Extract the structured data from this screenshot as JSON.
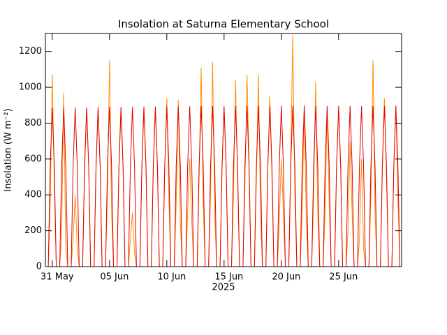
{
  "chart_data": {
    "type": "line",
    "title": "Insolation at Saturna Elementary School",
    "ylabel": "Insolation (W m⁻²)",
    "xlabel": "2025",
    "x": [
      -0.35,
      -0.18,
      0,
      0.18,
      0.35,
      0.65,
      0.82,
      1,
      1.18,
      1.35,
      1.65,
      1.82,
      2,
      2.18,
      2.35,
      2.65,
      2.82,
      3,
      3.18,
      3.35,
      3.65,
      3.82,
      4,
      4.18,
      4.35,
      4.65,
      4.82,
      5,
      5.18,
      5.35,
      5.65,
      5.82,
      6,
      6.18,
      6.35,
      6.65,
      6.82,
      7,
      7.18,
      7.35,
      7.65,
      7.82,
      8,
      8.18,
      8.35,
      8.65,
      8.82,
      9,
      9.18,
      9.35,
      9.65,
      9.82,
      10,
      10.18,
      10.35,
      10.65,
      10.82,
      11,
      11.18,
      11.35,
      11.65,
      11.82,
      12,
      12.18,
      12.35,
      12.65,
      12.82,
      13,
      13.18,
      13.35,
      13.65,
      13.82,
      14,
      14.18,
      14.35,
      14.65,
      14.82,
      15,
      15.18,
      15.35,
      15.65,
      15.82,
      16,
      16.18,
      16.35,
      16.65,
      16.82,
      17,
      17.18,
      17.35,
      17.65,
      17.82,
      18,
      18.18,
      18.35,
      18.65,
      18.82,
      19,
      19.18,
      19.35,
      19.65,
      19.82,
      20,
      20.18,
      20.35,
      20.65,
      20.82,
      21,
      21.18,
      21.35,
      21.65,
      21.82,
      22,
      22.18,
      22.35,
      22.65,
      22.82,
      23,
      23.18,
      23.35,
      23.65,
      23.82,
      24,
      24.18,
      24.35,
      24.65,
      24.82,
      25,
      25.18,
      25.35,
      25.65,
      25.82,
      26,
      26.18,
      26.35,
      26.65,
      26.82,
      27,
      27.18,
      27.35,
      27.65,
      27.82,
      28,
      28.18,
      28.35,
      28.65,
      28.82,
      29,
      29.18,
      29.35,
      29.65,
      29.82,
      30,
      30.18,
      30.35
    ],
    "series": [
      {
        "color": "#ff8c00",
        "values": [
          0,
          350,
          1070,
          450,
          0,
          0,
          200,
          970,
          100,
          0,
          0,
          150,
          400,
          100,
          0,
          0,
          520,
          880,
          560,
          0,
          0,
          540,
          880,
          560,
          0,
          0,
          420,
          1150,
          300,
          0,
          0,
          540,
          880,
          560,
          0,
          0,
          150,
          300,
          80,
          0,
          0,
          540,
          880,
          560,
          0,
          0,
          540,
          880,
          560,
          0,
          0,
          560,
          940,
          380,
          0,
          0,
          350,
          930,
          250,
          0,
          0,
          300,
          600,
          250,
          0,
          0,
          500,
          1110,
          350,
          0,
          0,
          400,
          1140,
          300,
          0,
          0,
          540,
          880,
          560,
          0,
          0,
          400,
          1040,
          500,
          0,
          0,
          450,
          1070,
          600,
          0,
          0,
          500,
          1070,
          300,
          0,
          0,
          550,
          950,
          500,
          0,
          0,
          250,
          600,
          300,
          0,
          0,
          600,
          1290,
          400,
          0,
          0,
          300,
          900,
          250,
          0,
          0,
          400,
          1030,
          300,
          0,
          0,
          300,
          880,
          350,
          0,
          0,
          540,
          880,
          560,
          0,
          0,
          200,
          700,
          300,
          0,
          0,
          150,
          600,
          100,
          0,
          0,
          400,
          1150,
          300,
          0,
          0,
          560,
          940,
          500,
          0,
          0,
          540,
          900,
          380,
          0
        ]
      },
      {
        "color": "#e00000",
        "values": [
          0,
          560,
          885,
          560,
          0,
          0,
          560,
          887,
          560,
          0,
          0,
          560,
          888,
          560,
          0,
          0,
          560,
          889,
          560,
          0,
          0,
          560,
          890,
          560,
          0,
          0,
          560,
          890,
          560,
          0,
          0,
          560,
          891,
          560,
          0,
          0,
          560,
          891,
          560,
          0,
          0,
          560,
          892,
          560,
          0,
          0,
          560,
          892,
          560,
          0,
          0,
          560,
          893,
          560,
          0,
          0,
          560,
          893,
          560,
          0,
          0,
          560,
          894,
          560,
          0,
          0,
          560,
          894,
          560,
          0,
          0,
          560,
          895,
          560,
          0,
          0,
          560,
          895,
          560,
          0,
          0,
          560,
          895,
          560,
          0,
          0,
          560,
          896,
          560,
          0,
          0,
          560,
          896,
          560,
          0,
          0,
          560,
          896,
          560,
          0,
          0,
          560,
          896,
          560,
          0,
          0,
          560,
          896,
          560,
          0,
          0,
          560,
          896,
          560,
          0,
          0,
          560,
          896,
          560,
          0,
          0,
          560,
          896,
          560,
          0,
          0,
          560,
          896,
          560,
          0,
          0,
          560,
          896,
          560,
          0,
          0,
          560,
          895,
          560,
          0,
          0,
          560,
          895,
          560,
          0,
          0,
          560,
          895,
          560,
          0,
          0,
          560,
          895,
          560,
          0
        ]
      }
    ],
    "xlim": [
      -0.6,
      30.5
    ],
    "xticks": [
      {
        "value": 0,
        "label": "31 May"
      },
      {
        "value": 5,
        "label": "05 Jun"
      },
      {
        "value": 10,
        "label": "10 Jun"
      },
      {
        "value": 15,
        "label": "15 Jun"
      },
      {
        "value": 20,
        "label": "20 Jun"
      },
      {
        "value": 25,
        "label": "25 Jun"
      }
    ],
    "ylim": [
      0,
      1300
    ],
    "yticks": [
      0,
      200,
      400,
      600,
      800,
      1000,
      1200
    ]
  }
}
